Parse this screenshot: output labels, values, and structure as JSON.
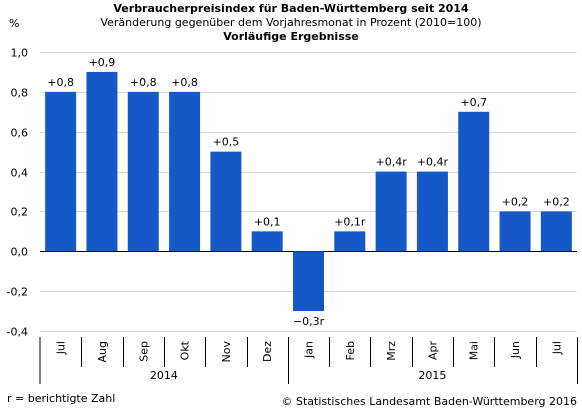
{
  "header": {
    "title": "Verbraucherpreisindex für Baden-Württemberg seit 2014",
    "subtitle": "Veränderung gegenüber dem Vorjahresmonat in Prozent (2010=100)",
    "note": "Vorläufige Ergebnisse"
  },
  "unit_label": "%",
  "footnote": "r = berichtigte Zahl",
  "copyright": "© Statistisches Landesamt Baden-Württemberg 2016",
  "chart_data": {
    "type": "bar",
    "title": "Verbraucherpreisindex für Baden-Württemberg seit 2014",
    "subtitle": "Veränderung gegenüber dem Vorjahresmonat in Prozent (2010=100)",
    "ylabel": "%",
    "ylim": [
      -0.4,
      1.0
    ],
    "yticks": [
      "-0,4",
      "-0,2",
      "0,0",
      "0,2",
      "0,4",
      "0,6",
      "0,8",
      "1,0"
    ],
    "grid": true,
    "bar_color": "#1459c7",
    "categories": [
      "Jul",
      "Aug",
      "Sep",
      "Okt",
      "Nov",
      "Dez",
      "Jan",
      "Feb",
      "Mrz",
      "Apr",
      "Mai",
      "Jun",
      "Jul"
    ],
    "values": [
      0.8,
      0.9,
      0.8,
      0.8,
      0.5,
      0.1,
      -0.3,
      0.1,
      0.4,
      0.4,
      0.7,
      0.2,
      0.2
    ],
    "data_labels": [
      "+0,8",
      "+0,9",
      "+0,8",
      "+0,8",
      "+0,5",
      "+0,1",
      "−0,3r",
      "+0,1r",
      "+0,4r",
      "+0,4r",
      "+0,7",
      "+0,2",
      "+0,2"
    ],
    "year_groups": [
      {
        "label": "2014",
        "count": 6
      },
      {
        "label": "2015",
        "count": 7
      }
    ]
  }
}
